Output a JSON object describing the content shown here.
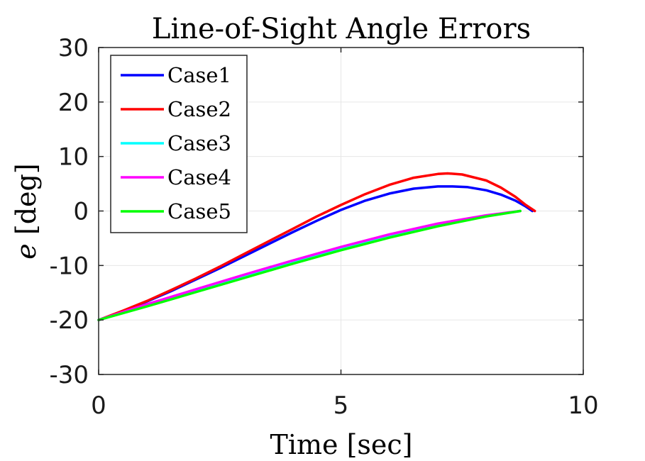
{
  "chart_data": {
    "type": "line",
    "title": "Line-of-Sight Angle Errors",
    "xlabel": "Time [sec]",
    "ylabel_symbol": "e",
    "ylabel_unit": "[deg]",
    "xlim": [
      0,
      10
    ],
    "ylim": [
      -30,
      30
    ],
    "xticks": [
      0,
      5,
      10
    ],
    "xtick_labels": [
      "0",
      "5",
      "10"
    ],
    "yticks": [
      30,
      20,
      10,
      0,
      -10,
      -20,
      -30
    ],
    "ytick_labels": [
      "30",
      "20",
      "10",
      "0",
      "-10",
      "-20",
      "-30"
    ],
    "grid": true,
    "legend_position": "top-left",
    "series": [
      {
        "name": "Case1",
        "color": "#0000ff",
        "x": [
          0,
          0.5,
          1,
          1.5,
          2,
          2.5,
          3,
          3.5,
          4,
          4.5,
          5,
          5.5,
          6,
          6.5,
          7,
          7.3,
          7.6,
          8,
          8.3,
          8.6,
          8.8,
          8.95
        ],
        "y": [
          -20,
          -18.4,
          -16.6,
          -14.7,
          -12.6,
          -10.5,
          -8.3,
          -6.1,
          -3.9,
          -1.8,
          0.2,
          1.9,
          3.2,
          4.1,
          4.5,
          4.5,
          4.4,
          3.8,
          3.0,
          1.9,
          0.9,
          0.0
        ]
      },
      {
        "name": "Case2",
        "color": "#ff0000",
        "x": [
          0,
          0.5,
          1,
          1.5,
          2,
          2.5,
          3,
          3.5,
          4,
          4.5,
          5,
          5.5,
          6,
          6.5,
          7,
          7.2,
          7.5,
          8,
          8.3,
          8.6,
          8.8,
          9.0
        ],
        "y": [
          -20,
          -18.3,
          -16.5,
          -14.5,
          -12.4,
          -10.2,
          -7.9,
          -5.6,
          -3.3,
          -1.0,
          1.1,
          3.1,
          4.8,
          6.1,
          6.8,
          6.9,
          6.7,
          5.6,
          4.3,
          2.6,
          1.2,
          0.0
        ]
      },
      {
        "name": "Case3",
        "color": "#00ffff",
        "x": [
          0,
          1,
          2,
          3,
          4,
          5,
          6,
          7,
          8,
          8.7
        ],
        "y": [
          -20,
          -17.3,
          -14.7,
          -12.0,
          -9.4,
          -6.9,
          -4.6,
          -2.6,
          -0.9,
          0.0
        ]
      },
      {
        "name": "Case4",
        "color": "#ff00ff",
        "x": [
          0,
          1,
          2,
          3,
          4,
          5,
          6,
          7,
          8,
          8.7
        ],
        "y": [
          -20,
          -17.1,
          -14.4,
          -11.7,
          -9.1,
          -6.6,
          -4.3,
          -2.3,
          -0.8,
          0.0
        ]
      },
      {
        "name": "Case5",
        "color": "#00ff00",
        "x": [
          0,
          1,
          2,
          3,
          4,
          5,
          6,
          7,
          8,
          8.7
        ],
        "y": [
          -20,
          -17.5,
          -14.9,
          -12.3,
          -9.7,
          -7.2,
          -4.9,
          -2.8,
          -1.0,
          0.0
        ]
      }
    ]
  }
}
